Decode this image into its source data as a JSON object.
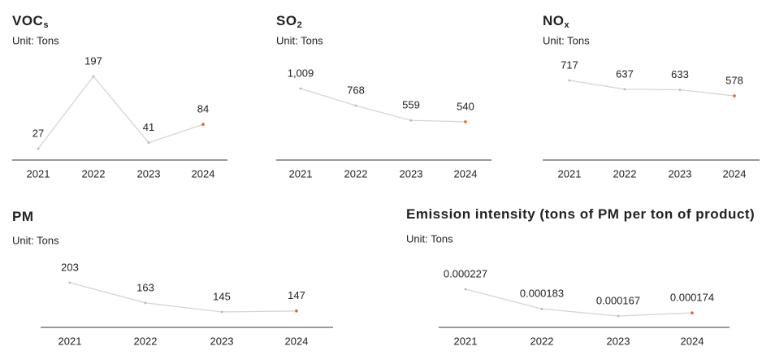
{
  "chart_data": [
    {
      "type": "line",
      "title": "VOC",
      "title_subscript": "s",
      "unit": "Unit: Tons",
      "categories": [
        "2021",
        "2022",
        "2023",
        "2024"
      ],
      "values": [
        27,
        197,
        41,
        84
      ],
      "color": "#d9d4cc",
      "highlight_color": "#e8641e"
    },
    {
      "type": "line",
      "title": "SO",
      "title_subscript": "2",
      "unit": "Unit: Tons",
      "categories": [
        "2021",
        "2022",
        "2023",
        "2024"
      ],
      "values": [
        1009,
        768,
        559,
        540
      ],
      "value_labels": [
        "1,009",
        "768",
        "559",
        "540"
      ],
      "color": "#d9d4cc",
      "highlight_color": "#e8641e"
    },
    {
      "type": "line",
      "title": "NO",
      "title_subscript": "x",
      "unit": "Unit: Tons",
      "categories": [
        "2021",
        "2022",
        "2023",
        "2024"
      ],
      "values": [
        717,
        637,
        633,
        578
      ],
      "color": "#d9d4cc",
      "highlight_color": "#e8641e"
    },
    {
      "type": "line",
      "title": "PM",
      "unit": "Unit: Tons",
      "categories": [
        "2021",
        "2022",
        "2023",
        "2024"
      ],
      "values": [
        203,
        163,
        145,
        147
      ],
      "color": "#d9d4cc",
      "highlight_color": "#e8641e"
    },
    {
      "type": "line",
      "title": "Emission intensity (tons of PM per ton of product)",
      "unit": "Unit: Tons",
      "categories": [
        "2021",
        "2022",
        "2023",
        "2024"
      ],
      "values": [
        0.000227,
        0.000183,
        0.000167,
        0.000174
      ],
      "color": "#d9d4cc",
      "highlight_color": "#e8641e"
    }
  ]
}
